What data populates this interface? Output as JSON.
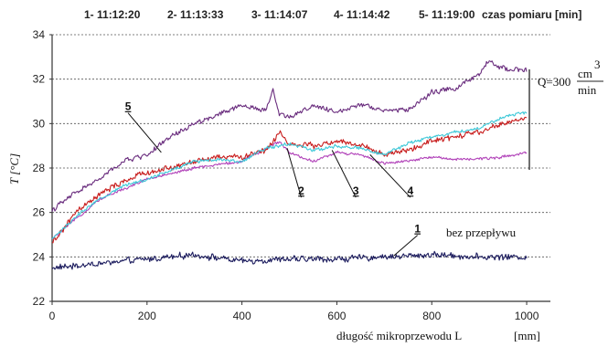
{
  "chart_data": {
    "type": "line",
    "header": {
      "times": [
        {
          "num": "1",
          "time": "11:12:20"
        },
        {
          "num": "2",
          "time": "11:13:33"
        },
        {
          "num": "3",
          "time": "11:14:07"
        },
        {
          "num": "4",
          "time": "11:14:42"
        },
        {
          "num": "5",
          "time": "11:19:00"
        }
      ],
      "unit_label": "czas pomiaru [min]"
    },
    "ylabel": "T [°C]",
    "xlabel": "długość mikroprzewodu L",
    "xunit": "[mm]",
    "xlim": [
      0,
      1050
    ],
    "ylim": [
      22,
      34
    ],
    "x_ticks": [
      "0",
      "200",
      "400",
      "600",
      "800",
      "1000"
    ],
    "y_ticks": [
      "22",
      "24",
      "26",
      "28",
      "30",
      "32",
      "34"
    ],
    "grid": true,
    "flow_annotation": {
      "prefix": "Q=300",
      "numerator": "cm",
      "exponent": "3",
      "denominator": "min"
    },
    "no_flow_label": "bez przepływu",
    "series": [
      {
        "name": "1",
        "color": "#1c1c5e",
        "noise": 0.22,
        "x": [
          0,
          100,
          200,
          300,
          400,
          500,
          600,
          700,
          800,
          900,
          1000
        ],
        "y": [
          23.5,
          23.7,
          23.9,
          24.1,
          23.8,
          23.9,
          23.9,
          24.0,
          24.1,
          24.0,
          24.0
        ]
      },
      {
        "name": "2",
        "color": "#c81e1e",
        "noise": 0.2,
        "x": [
          0,
          50,
          100,
          150,
          200,
          250,
          300,
          350,
          400,
          450,
          480,
          500,
          550,
          600,
          650,
          700,
          750,
          800,
          850,
          900,
          950,
          1000
        ],
        "y": [
          24.6,
          26.0,
          26.8,
          27.4,
          27.8,
          28.0,
          28.3,
          28.5,
          28.5,
          28.8,
          29.6,
          29.1,
          29.0,
          29.2,
          29.0,
          28.6,
          28.8,
          29.2,
          29.4,
          29.6,
          30.0,
          30.3
        ]
      },
      {
        "name": "3",
        "color": "#3cc8d8",
        "noise": 0.12,
        "x": [
          0,
          50,
          100,
          150,
          200,
          250,
          300,
          350,
          400,
          450,
          500,
          550,
          600,
          650,
          700,
          750,
          800,
          850,
          900,
          950,
          1000
        ],
        "y": [
          24.8,
          25.8,
          26.6,
          27.2,
          27.5,
          27.9,
          28.3,
          28.4,
          28.3,
          28.9,
          29.1,
          28.8,
          29.0,
          28.9,
          28.6,
          29.1,
          29.4,
          29.6,
          29.8,
          30.3,
          30.5
        ]
      },
      {
        "name": "4",
        "color": "#b040b8",
        "noise": 0.1,
        "x": [
          0,
          100,
          200,
          300,
          400,
          480,
          500,
          550,
          600,
          650,
          700,
          750,
          800,
          850,
          900,
          950,
          1000
        ],
        "y": [
          24.8,
          26.6,
          27.5,
          28.0,
          28.3,
          29.2,
          28.7,
          28.3,
          28.7,
          28.6,
          28.2,
          28.3,
          28.5,
          28.4,
          28.4,
          28.5,
          28.7
        ]
      },
      {
        "name": "5",
        "color": "#6a2d7e",
        "noise": 0.18,
        "x": [
          0,
          50,
          100,
          150,
          200,
          250,
          300,
          350,
          400,
          450,
          465,
          480,
          500,
          550,
          600,
          650,
          700,
          750,
          800,
          850,
          900,
          920,
          950,
          1000
        ],
        "y": [
          26.1,
          26.9,
          27.5,
          28.3,
          28.6,
          29.4,
          30.0,
          30.4,
          30.8,
          30.6,
          31.5,
          30.4,
          30.3,
          30.8,
          30.5,
          30.9,
          30.6,
          30.6,
          31.4,
          31.6,
          32.2,
          32.8,
          32.5,
          32.4
        ]
      }
    ],
    "series_label_positions": [
      {
        "name": "1",
        "x": 770,
        "y": 25.1
      },
      {
        "name": "2",
        "x": 525,
        "y": 26.8
      },
      {
        "name": "3",
        "x": 640,
        "y": 26.8
      },
      {
        "name": "4",
        "x": 755,
        "y": 26.8
      },
      {
        "name": "5",
        "x": 160,
        "y": 30.6
      }
    ]
  }
}
